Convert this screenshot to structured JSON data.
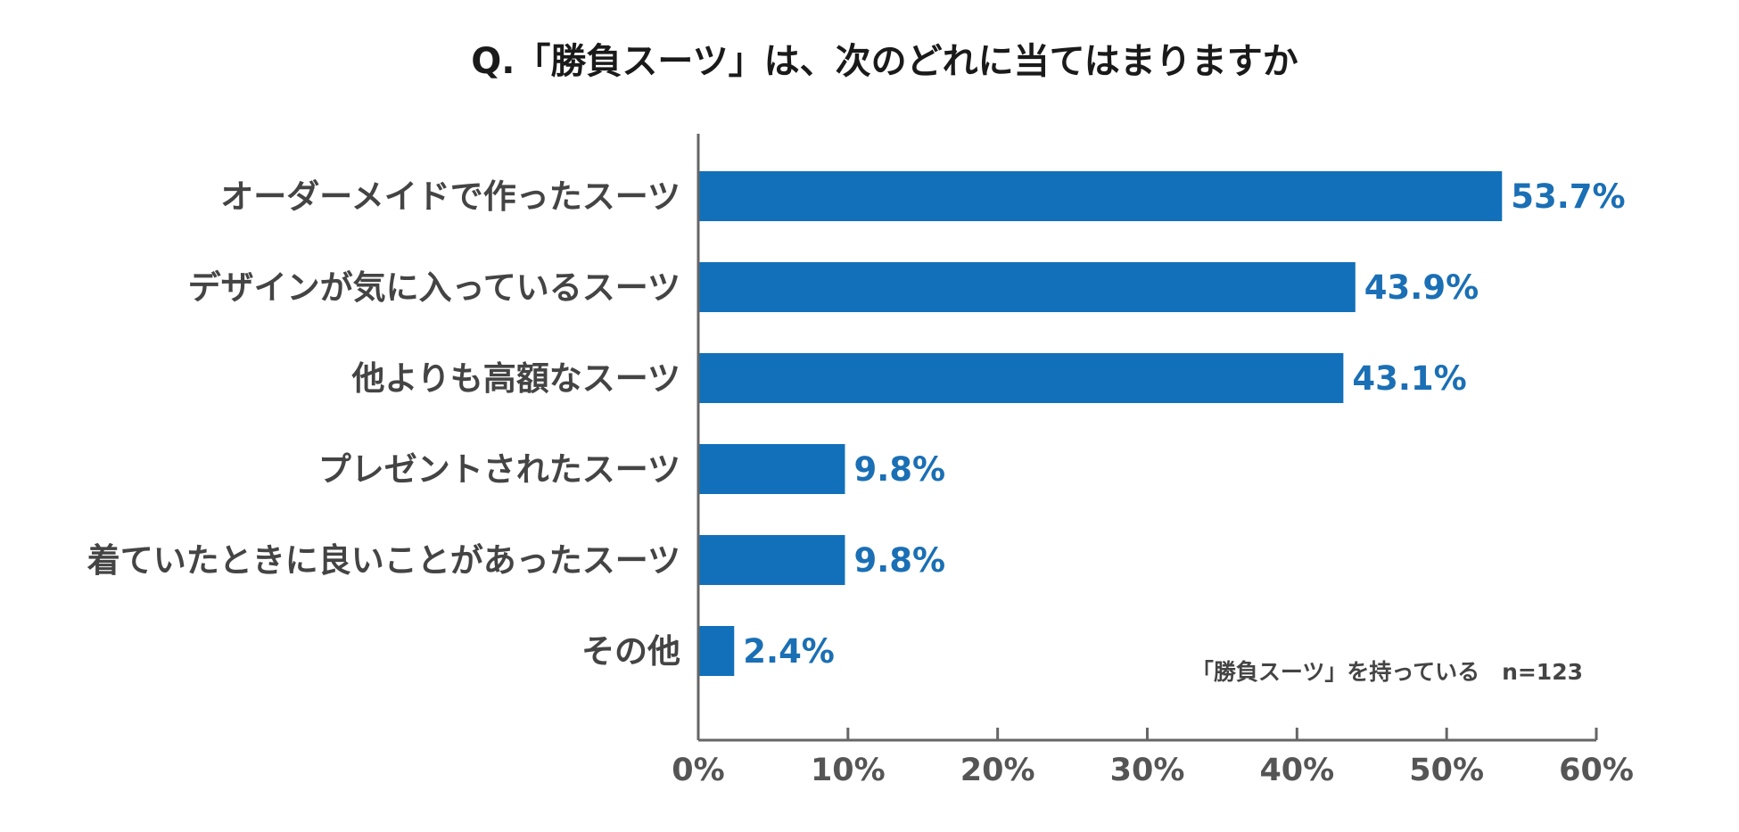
{
  "chart_data": {
    "type": "bar",
    "orientation": "horizontal",
    "title": "Q.「勝負スーツ」は、次のどれに当てはまりますか",
    "categories": [
      "オーダーメイドで作ったスーツ",
      "デザインが気に入っているスーツ",
      "他よりも高額なスーツ",
      "プレゼントされたスーツ",
      "着ていたときに良いことがあったスーツ",
      "その他"
    ],
    "values": [
      53.7,
      43.9,
      43.1,
      9.8,
      9.8,
      2.4
    ],
    "value_labels": [
      "53.7%",
      "43.9%",
      "43.1%",
      "9.8%",
      "9.8%",
      "2.4%"
    ],
    "xlim": [
      0,
      60
    ],
    "x_ticks": [
      0,
      10,
      20,
      30,
      40,
      50,
      60
    ],
    "x_tick_labels": [
      "0%",
      "10%",
      "20%",
      "30%",
      "40%",
      "50%",
      "60%"
    ],
    "xlabel": "",
    "ylabel": "",
    "grid": false,
    "annotation": "「勝負スーツ」を持っている　n=123",
    "colors": {
      "bar": "#1170b9",
      "value_text": "#1a6fb5",
      "axis": "#666666"
    }
  }
}
